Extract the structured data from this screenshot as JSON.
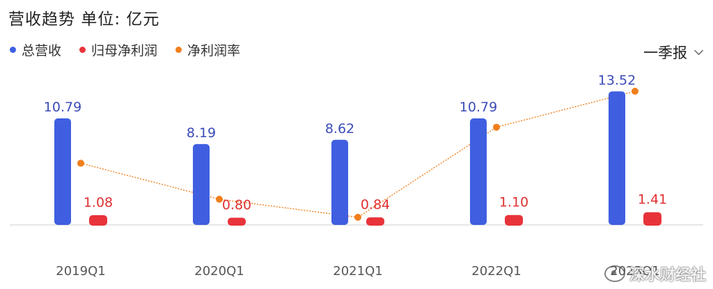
{
  "header": {
    "title": "营收趋势",
    "unit_label": "单位: 亿元"
  },
  "period_selector": {
    "label": "一季报"
  },
  "watermark": {
    "text": "深水财经社"
  },
  "colors": {
    "revenue": "#3f5fe0",
    "net_profit": "#e8333a",
    "margin": "#f07f1d",
    "baseline": "#d8d8d8",
    "revenue_label": "#3b4bb8",
    "profit_label": "#e03030"
  },
  "chart_data": {
    "type": "bar",
    "categories": [
      "2019Q1",
      "2020Q1",
      "2021Q1",
      "2022Q1",
      "2023Q1"
    ],
    "series": [
      {
        "name": "总营收",
        "type": "bar",
        "values": [
          10.79,
          8.19,
          8.62,
          10.79,
          13.52
        ]
      },
      {
        "name": "归母净利润",
        "type": "bar",
        "values": [
          1.08,
          0.8,
          0.84,
          1.1,
          1.41
        ]
      },
      {
        "name": "净利润率",
        "type": "line",
        "values": [
          10.0,
          9.8,
          9.7,
          10.2,
          10.4
        ]
      }
    ],
    "legend_position": "top-left",
    "grid": false
  }
}
